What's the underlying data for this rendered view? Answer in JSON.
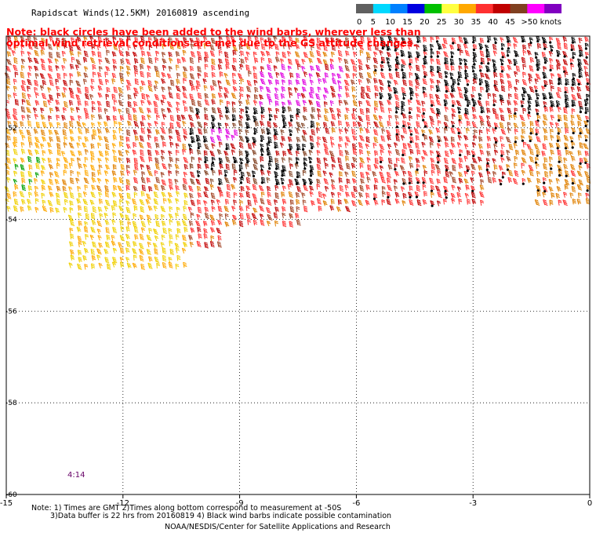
{
  "title": "Rapidscat Winds(12.5KM) 20160819 ascending",
  "note": {
    "line1": "Note: black circles have been added to the wind barbs, wherever less than",
    "line2": "optimal wind retrieval conditions are met due to the GS attitude changes."
  },
  "colorbar": {
    "labels": [
      "0",
      "5",
      "10",
      "15",
      "20",
      "25",
      "30",
      "35",
      "40",
      "45",
      ">50 knots"
    ],
    "colors": [
      "#606060",
      "#00d8ff",
      "#0080ff",
      "#0000e0",
      "#00c000",
      "#ffff40",
      "#ffa800",
      "#ff3030",
      "#c00000",
      "#804020",
      "#ff00ff",
      "#8000c0"
    ]
  },
  "map": {
    "x_ticks": [
      "-15",
      "-12",
      "-9",
      "-6",
      "-3",
      "0"
    ],
    "y_ticks": [
      "-52",
      "-54",
      "-56",
      "-58",
      "-60"
    ],
    "x_range": [
      -15,
      0
    ],
    "y_range": [
      -60,
      -50
    ],
    "grid": true
  },
  "time_label": "4:14",
  "footer": {
    "line1": "Note: 1) Times are GMT 2)Times along bottom correspond to measurement at -50S",
    "line2": "3)Data buffer is 22 hrs from 20160819 4) Black wind barbs indicate possible contamination",
    "line3": "NOAA/NESDIS/Center for Satellite Applications and Research"
  }
}
